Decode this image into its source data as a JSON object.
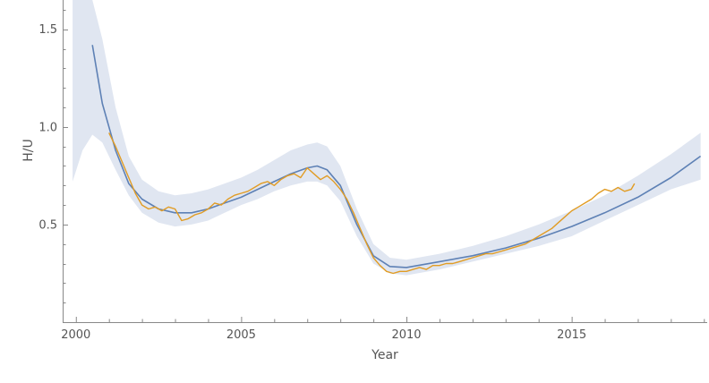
{
  "chart_data": {
    "type": "line",
    "title": "",
    "xlabel": "Year",
    "ylabel": "H/U",
    "xlim": [
      1999.6,
      2019.1
    ],
    "ylim": [
      0.0,
      1.65
    ],
    "x_ticks": [
      2000,
      2005,
      2010,
      2015
    ],
    "x_tick_labels": [
      "2000",
      "2005",
      "2010",
      "2015"
    ],
    "y_ticks": [
      0.5,
      1.0,
      1.5
    ],
    "y_tick_labels": [
      "0.5",
      "1.0",
      "1.5"
    ],
    "grid": false,
    "legend": "none",
    "colors": {
      "fit": "#5e81b5",
      "band": "#e0e6f1",
      "observed": "#e19c24",
      "axis": "#888888",
      "text": "#555555"
    },
    "band": {
      "x": [
        1999.9,
        2000.2,
        2000.5,
        2000.8,
        2001.2,
        2001.6,
        2002.0,
        2002.5,
        2003.0,
        2003.5,
        2004.0,
        2004.5,
        2005.0,
        2005.5,
        2006.0,
        2006.5,
        2007.0,
        2007.3,
        2007.6,
        2008.0,
        2008.5,
        2009.0,
        2009.5,
        2010.0,
        2011.0,
        2012.0,
        2013.0,
        2014.0,
        2015.0,
        2016.0,
        2017.0,
        2018.0,
        2018.9
      ],
      "upper": [
        1.85,
        1.75,
        1.65,
        1.45,
        1.1,
        0.85,
        0.73,
        0.67,
        0.65,
        0.66,
        0.68,
        0.71,
        0.74,
        0.78,
        0.83,
        0.88,
        0.91,
        0.92,
        0.9,
        0.8,
        0.58,
        0.4,
        0.33,
        0.32,
        0.35,
        0.39,
        0.44,
        0.5,
        0.57,
        0.65,
        0.75,
        0.86,
        0.97
      ],
      "lower": [
        0.72,
        0.88,
        0.96,
        0.92,
        0.78,
        0.65,
        0.56,
        0.51,
        0.49,
        0.5,
        0.52,
        0.56,
        0.6,
        0.63,
        0.67,
        0.7,
        0.72,
        0.72,
        0.7,
        0.62,
        0.44,
        0.3,
        0.25,
        0.24,
        0.27,
        0.31,
        0.35,
        0.39,
        0.44,
        0.52,
        0.6,
        0.68,
        0.73
      ]
    },
    "series": [
      {
        "role": "fit",
        "x": [
          2000.5,
          2000.8,
          2001.2,
          2001.6,
          2002.0,
          2002.5,
          2003.0,
          2003.5,
          2004.0,
          2004.5,
          2005.0,
          2005.5,
          2006.0,
          2006.5,
          2007.0,
          2007.3,
          2007.6,
          2008.0,
          2008.5,
          2009.0,
          2009.5,
          2010.0,
          2011.0,
          2012.0,
          2013.0,
          2014.0,
          2015.0,
          2016.0,
          2017.0,
          2018.0,
          2018.9
        ],
        "y": [
          1.42,
          1.12,
          0.88,
          0.71,
          0.63,
          0.58,
          0.56,
          0.56,
          0.58,
          0.61,
          0.64,
          0.68,
          0.72,
          0.76,
          0.79,
          0.8,
          0.78,
          0.7,
          0.5,
          0.34,
          0.285,
          0.28,
          0.31,
          0.34,
          0.38,
          0.43,
          0.49,
          0.56,
          0.64,
          0.74,
          0.85
        ]
      },
      {
        "role": "observed",
        "x": [
          2001.0,
          2001.2,
          2001.4,
          2001.6,
          2001.8,
          2002.0,
          2002.2,
          2002.4,
          2002.6,
          2002.8,
          2003.0,
          2003.2,
          2003.4,
          2003.6,
          2003.8,
          2004.0,
          2004.2,
          2004.4,
          2004.6,
          2004.8,
          2005.0,
          2005.2,
          2005.4,
          2005.6,
          2005.8,
          2006.0,
          2006.2,
          2006.4,
          2006.6,
          2006.8,
          2007.0,
          2007.2,
          2007.4,
          2007.6,
          2007.8,
          2008.0,
          2008.2,
          2008.4,
          2008.6,
          2008.8,
          2009.0,
          2009.2,
          2009.4,
          2009.6,
          2009.8,
          2010.0,
          2010.2,
          2010.4,
          2010.6,
          2010.8,
          2011.0,
          2011.2,
          2011.4,
          2011.6,
          2011.8,
          2012.0,
          2012.2,
          2012.4,
          2012.6,
          2012.8,
          2013.0,
          2013.2,
          2013.4,
          2013.6,
          2013.8,
          2014.0,
          2014.2,
          2014.4,
          2014.6,
          2014.8,
          2015.0,
          2015.2,
          2015.4,
          2015.6,
          2015.8,
          2016.0,
          2016.2,
          2016.4,
          2016.6,
          2016.8,
          2016.9
        ],
        "y": [
          0.97,
          0.9,
          0.82,
          0.74,
          0.66,
          0.6,
          0.58,
          0.59,
          0.57,
          0.59,
          0.58,
          0.52,
          0.53,
          0.55,
          0.56,
          0.58,
          0.61,
          0.6,
          0.63,
          0.65,
          0.66,
          0.67,
          0.69,
          0.71,
          0.72,
          0.7,
          0.73,
          0.75,
          0.76,
          0.74,
          0.79,
          0.76,
          0.73,
          0.75,
          0.72,
          0.68,
          0.63,
          0.56,
          0.48,
          0.4,
          0.33,
          0.29,
          0.26,
          0.25,
          0.26,
          0.26,
          0.27,
          0.28,
          0.27,
          0.29,
          0.29,
          0.3,
          0.3,
          0.31,
          0.32,
          0.33,
          0.34,
          0.35,
          0.35,
          0.36,
          0.37,
          0.38,
          0.39,
          0.4,
          0.42,
          0.44,
          0.46,
          0.48,
          0.51,
          0.54,
          0.57,
          0.59,
          0.61,
          0.63,
          0.66,
          0.68,
          0.67,
          0.69,
          0.67,
          0.68,
          0.71
        ]
      }
    ]
  }
}
